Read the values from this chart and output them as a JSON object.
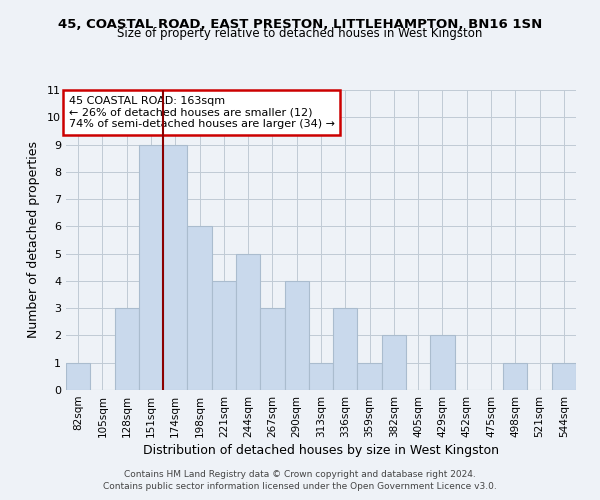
{
  "title1": "45, COASTAL ROAD, EAST PRESTON, LITTLEHAMPTON, BN16 1SN",
  "title2": "Size of property relative to detached houses in West Kingston",
  "xlabel": "Distribution of detached houses by size in West Kingston",
  "ylabel": "Number of detached properties",
  "categories": [
    "82sqm",
    "105sqm",
    "128sqm",
    "151sqm",
    "174sqm",
    "198sqm",
    "221sqm",
    "244sqm",
    "267sqm",
    "290sqm",
    "313sqm",
    "336sqm",
    "359sqm",
    "382sqm",
    "405sqm",
    "429sqm",
    "452sqm",
    "475sqm",
    "498sqm",
    "521sqm",
    "544sqm"
  ],
  "values": [
    1,
    0,
    3,
    9,
    9,
    6,
    4,
    5,
    3,
    4,
    1,
    3,
    1,
    2,
    0,
    2,
    0,
    0,
    1,
    0,
    1
  ],
  "bar_color": "#c9d9ec",
  "bar_edge_color": "#aabcce",
  "vline_x_index": 3,
  "vline_color": "#8b0000",
  "ylim": [
    0,
    11
  ],
  "yticks": [
    0,
    1,
    2,
    3,
    4,
    5,
    6,
    7,
    8,
    9,
    10,
    11
  ],
  "grid_color": "#c0cad4",
  "bg_color": "#eef2f7",
  "annotation_text": "45 COASTAL ROAD: 163sqm\n← 26% of detached houses are smaller (12)\n74% of semi-detached houses are larger (34) →",
  "annotation_box_color": "#ffffff",
  "annotation_box_edge": "#cc0000",
  "footer1": "Contains HM Land Registry data © Crown copyright and database right 2024.",
  "footer2": "Contains public sector information licensed under the Open Government Licence v3.0.",
  "title1_fontsize": 9.5,
  "title2_fontsize": 8.5,
  "xlabel_fontsize": 9,
  "ylabel_fontsize": 9,
  "tick_fontsize": 7.5,
  "footer_fontsize": 6.5
}
